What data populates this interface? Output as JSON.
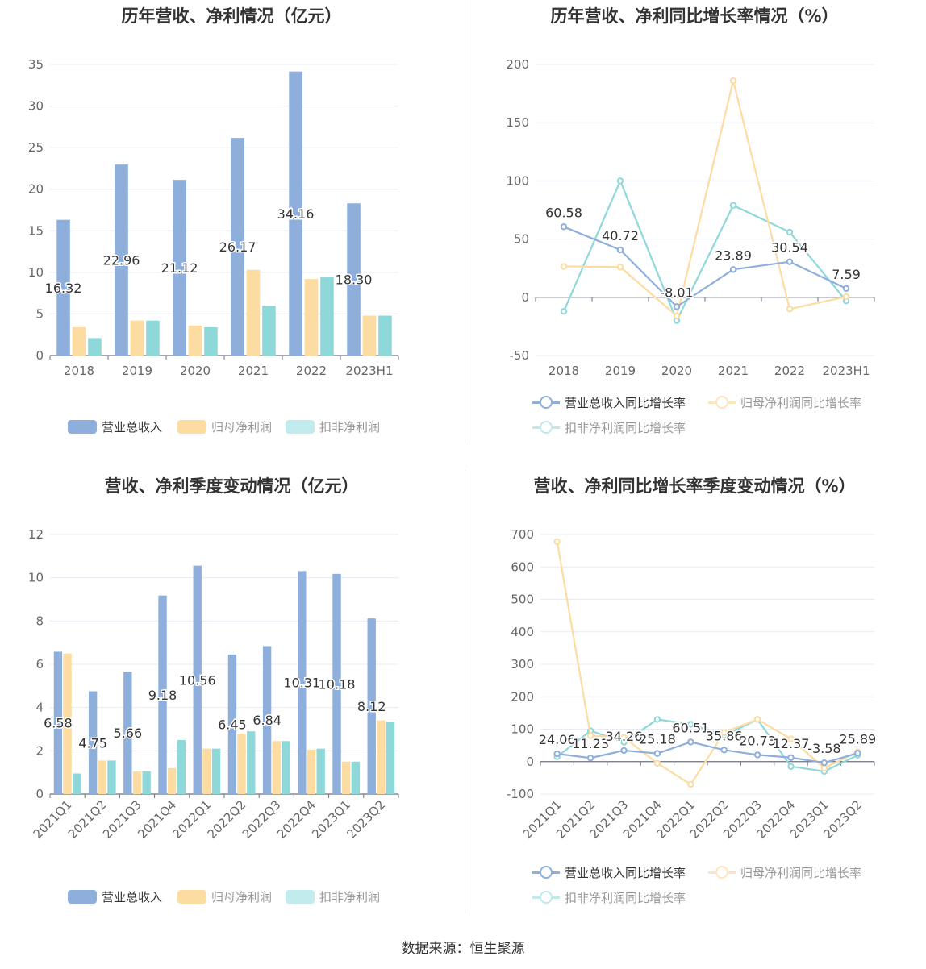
{
  "colors": {
    "revenue": "#8eaedc",
    "net_profit": "#fddca2",
    "deducted_profit": "#8fd8da",
    "axis": "#666666",
    "grid": "#e8ebf3",
    "zero_line": "#6e7079"
  },
  "source": "数据来源：恒生聚源",
  "legend_bar": [
    "营业总收入",
    "归母净利润",
    "扣非净利润"
  ],
  "legend_line": [
    "营业总收入同比增长率",
    "归母净利润同比增长率",
    "扣非净利润同比增长率"
  ],
  "chart_data": [
    {
      "type": "bar",
      "title": "历年营收、净利情况（亿元）",
      "categories": [
        "2018",
        "2019",
        "2020",
        "2021",
        "2022",
        "2023H1"
      ],
      "ylim": [
        0,
        35
      ],
      "yticks": [
        0,
        5,
        10,
        15,
        20,
        25,
        30,
        35
      ],
      "series": [
        {
          "name": "营业总收入",
          "values": [
            16.32,
            22.96,
            21.12,
            26.17,
            34.16,
            18.3
          ],
          "labels": [
            "16.32",
            "22.96",
            "21.12",
            "26.17",
            "34.16",
            "18.30"
          ]
        },
        {
          "name": "归母净利润",
          "values": [
            3.4,
            4.2,
            3.6,
            10.3,
            9.2,
            4.8
          ]
        },
        {
          "name": "扣非净利润",
          "values": [
            2.1,
            4.2,
            3.4,
            6.0,
            9.4,
            4.8
          ]
        }
      ],
      "legend_position": "bottom",
      "grid": true
    },
    {
      "type": "line",
      "title": "历年营收、净利同比增长率情况（%）",
      "categories": [
        "2018",
        "2019",
        "2020",
        "2021",
        "2022",
        "2023H1"
      ],
      "ylim": [
        -50,
        200
      ],
      "yticks": [
        -50,
        0,
        50,
        100,
        150,
        200
      ],
      "series": [
        {
          "name": "营业总收入同比增长率",
          "values": [
            60.58,
            40.72,
            -8.01,
            23.89,
            30.54,
            7.59
          ],
          "labels": [
            "60.58",
            "40.72",
            "-8.01",
            "23.89",
            "30.54",
            "7.59"
          ]
        },
        {
          "name": "归母净利润同比增长率",
          "values": [
            26.5,
            26.0,
            -16.0,
            186.0,
            -10.0,
            0.5
          ]
        },
        {
          "name": "扣非净利润同比增长率",
          "values": [
            -12.0,
            100.0,
            -20.0,
            79.0,
            56.0,
            -3.0
          ]
        }
      ],
      "legend_position": "bottom",
      "grid": true
    },
    {
      "type": "bar",
      "title": "营收、净利季度变动情况（亿元）",
      "categories": [
        "2021Q1",
        "2021Q2",
        "2021Q3",
        "2021Q4",
        "2022Q1",
        "2022Q2",
        "2022Q3",
        "2022Q4",
        "2023Q1",
        "2023Q2"
      ],
      "ylim": [
        0,
        12
      ],
      "yticks": [
        0,
        2,
        4,
        6,
        8,
        10,
        12
      ],
      "series": [
        {
          "name": "营业总收入",
          "values": [
            6.58,
            4.75,
            5.66,
            9.18,
            10.56,
            6.45,
            6.84,
            10.31,
            10.18,
            8.12
          ],
          "labels": [
            "6.58",
            "4.75",
            "5.66",
            "9.18",
            "10.56",
            "6.45",
            "6.84",
            "10.31",
            "10.18",
            "8.12"
          ]
        },
        {
          "name": "归母净利润",
          "values": [
            6.5,
            1.55,
            1.05,
            1.2,
            2.1,
            2.8,
            2.45,
            2.05,
            1.5,
            3.4
          ]
        },
        {
          "name": "扣非净利润",
          "values": [
            0.95,
            1.55,
            1.05,
            2.5,
            2.1,
            2.9,
            2.45,
            2.1,
            1.5,
            3.35
          ]
        }
      ],
      "legend_position": "bottom",
      "grid": true
    },
    {
      "type": "line",
      "title": "营收、净利同比增长率季度变动情况（%）",
      "categories": [
        "2021Q1",
        "2021Q2",
        "2021Q3",
        "2021Q4",
        "2022Q1",
        "2022Q2",
        "2022Q3",
        "2022Q4",
        "2023Q1",
        "2023Q2"
      ],
      "ylim": [
        -100,
        700
      ],
      "yticks": [
        -100,
        0,
        100,
        200,
        300,
        400,
        500,
        600,
        700
      ],
      "series": [
        {
          "name": "营业总收入同比增长率",
          "values": [
            24.06,
            11.23,
            34.26,
            25.18,
            60.51,
            35.86,
            20.73,
            12.37,
            -3.58,
            25.89
          ],
          "labels": [
            "24.06",
            "11.23",
            "34.26",
            "25.18",
            "60.51",
            "35.86",
            "20.73",
            "12.37",
            "-3.58",
            "25.89"
          ]
        },
        {
          "name": "归母净利润同比增长率",
          "values": [
            678,
            80,
            75,
            -5,
            -70,
            90,
            130,
            70,
            -20,
            30
          ]
        },
        {
          "name": "扣非净利润同比增长率",
          "values": [
            15,
            95,
            60,
            130,
            115,
            80,
            130,
            -15,
            -30,
            20
          ]
        }
      ],
      "legend_position": "bottom",
      "grid": true
    }
  ]
}
